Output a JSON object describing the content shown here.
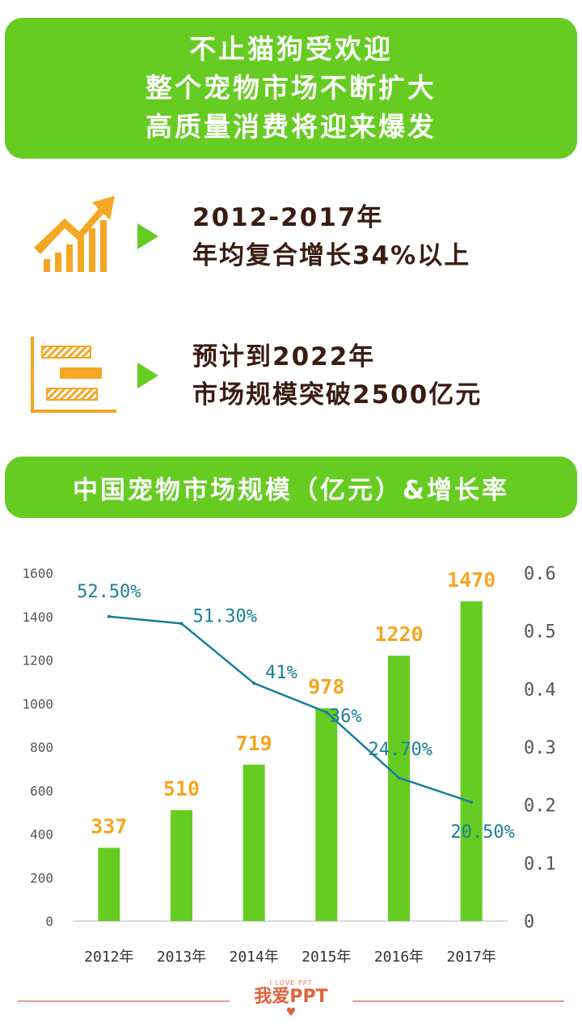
{
  "header": {
    "lines": [
      "不止猫狗受欢迎",
      "整个宠物市场不断扩大",
      "高质量消费将迎来爆发"
    ]
  },
  "stats": [
    {
      "icon": "growth-chart-icon",
      "line1": "2012-2017年",
      "line2": "年均复合增长34%以上"
    },
    {
      "icon": "gantt-chart-icon",
      "line1": "预计到2022年",
      "line2": "市场规模突破2500亿元"
    }
  ],
  "chart_title": "中国宠物市场规模（亿元）&增长率",
  "chart_data": {
    "type": "bar",
    "categories": [
      "2012年",
      "2013年",
      "2014年",
      "2015年",
      "2016年",
      "2017年"
    ],
    "series": [
      {
        "values": [
          337,
          510,
          719,
          978,
          1220,
          1470
        ],
        "labels": [
          "337",
          "510",
          "719",
          "978",
          "1220",
          "1470"
        ],
        "color": "#66cc22",
        "axis": "left"
      },
      {
        "type": "line",
        "values": [
          0.525,
          0.513,
          0.41,
          0.36,
          0.247,
          0.205
        ],
        "labels": [
          "52.50%",
          "51.30%",
          "41%",
          "36%",
          "24.70%",
          "20.50%"
        ],
        "color": "#1a7f9a",
        "axis": "right"
      }
    ],
    "left_ylim": [
      0,
      1600
    ],
    "left_ticks": [
      "0",
      "200",
      "400",
      "600",
      "800",
      "1000",
      "1200",
      "1400",
      "1600"
    ],
    "right_ylim": [
      0,
      0.6
    ],
    "right_ticks": [
      "0",
      "0.1",
      "0.2",
      "0.3",
      "0.4",
      "0.5",
      "0.6"
    ],
    "bar_label_color": "#f5a623",
    "grid": false
  },
  "footer": {
    "logo_small": "I LOVE PPT",
    "logo_text": "我爱PPT",
    "logo_heart": "♥"
  },
  "colors": {
    "accent": "#66cc22",
    "orange": "#f5a623",
    "teal": "#1a7f9a",
    "dark_text": "#3a1c12"
  }
}
